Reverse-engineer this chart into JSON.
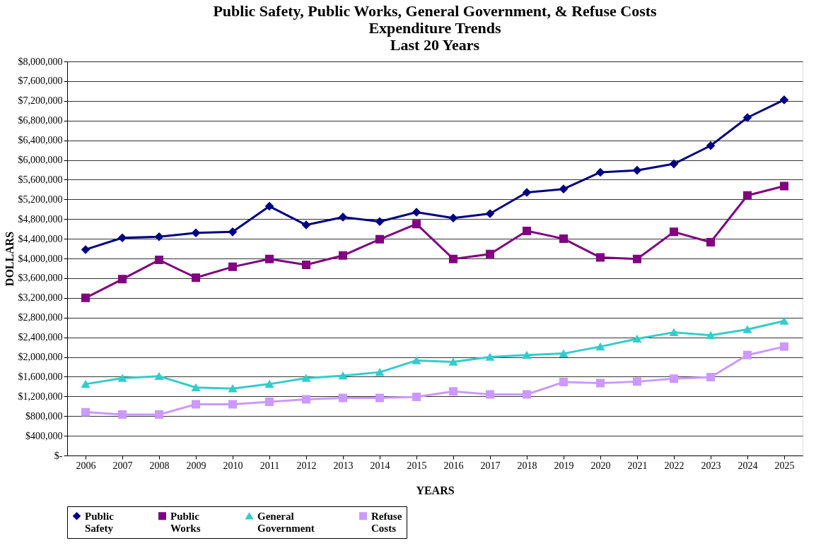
{
  "chart_data": {
    "type": "line",
    "title": "Public Safety, Public Works, General Government, & Refuse Costs\nExpenditure Trends\nLast 20 Years",
    "xlabel": "YEARS",
    "ylabel": "DOLLARS",
    "categories": [
      "2006",
      "2007",
      "2008",
      "2009",
      "2010",
      "2011",
      "2012",
      "2013",
      "2014",
      "2015",
      "2016",
      "2017",
      "2018",
      "2019",
      "2020",
      "2021",
      "2022",
      "2023",
      "2024",
      "2025"
    ],
    "series": [
      {
        "name": "Public Safety",
        "color": "#000080",
        "marker": "diamond",
        "values": [
          4180000,
          4420000,
          4440000,
          4520000,
          4540000,
          5060000,
          4680000,
          4840000,
          4750000,
          4940000,
          4820000,
          4910000,
          5340000,
          5410000,
          5750000,
          5790000,
          5920000,
          6290000,
          6860000,
          7220000
        ]
      },
      {
        "name": "Public Works",
        "color": "#800080",
        "marker": "square",
        "values": [
          3200000,
          3580000,
          3970000,
          3610000,
          3830000,
          3990000,
          3870000,
          4060000,
          4390000,
          4700000,
          3990000,
          4090000,
          4560000,
          4400000,
          4020000,
          3990000,
          4540000,
          4330000,
          5280000,
          5470000
        ]
      },
      {
        "name": "General Government",
        "color": "#33cccc",
        "marker": "triangle",
        "values": [
          1450000,
          1570000,
          1610000,
          1380000,
          1360000,
          1450000,
          1570000,
          1620000,
          1690000,
          1930000,
          1900000,
          2000000,
          2040000,
          2070000,
          2210000,
          2370000,
          2500000,
          2440000,
          2560000,
          2730000
        ]
      },
      {
        "name": "Refuse Costs",
        "color": "#cc99ff",
        "marker": "square",
        "values": [
          880000,
          830000,
          830000,
          1040000,
          1040000,
          1090000,
          1140000,
          1170000,
          1170000,
          1190000,
          1300000,
          1240000,
          1240000,
          1490000,
          1470000,
          1500000,
          1560000,
          1590000,
          2040000,
          2210000
        ]
      }
    ],
    "ylim": [
      0,
      8000000
    ],
    "yticks": [
      {
        "value": 0,
        "label": "$-"
      },
      {
        "value": 400000,
        "label": "$400,000"
      },
      {
        "value": 800000,
        "label": "$800,000"
      },
      {
        "value": 1200000,
        "label": "$1,200,000"
      },
      {
        "value": 1600000,
        "label": "$1,600,000"
      },
      {
        "value": 2000000,
        "label": "$2,000,000"
      },
      {
        "value": 2400000,
        "label": "$2,400,000"
      },
      {
        "value": 2800000,
        "label": "$2,800,000"
      },
      {
        "value": 3200000,
        "label": "$3,200,000"
      },
      {
        "value": 3600000,
        "label": "$3,600,000"
      },
      {
        "value": 4000000,
        "label": "$4,000,000"
      },
      {
        "value": 4400000,
        "label": "$4,400,000"
      },
      {
        "value": 4800000,
        "label": "$4,800,000"
      },
      {
        "value": 5200000,
        "label": "$5,200,000"
      },
      {
        "value": 5600000,
        "label": "$5,600,000"
      },
      {
        "value": 6000000,
        "label": "$6,000,000"
      },
      {
        "value": 6400000,
        "label": "$6,400,000"
      },
      {
        "value": 6800000,
        "label": "$6,800,000"
      },
      {
        "value": 7200000,
        "label": "$7,200,000"
      },
      {
        "value": 7600000,
        "label": "$7,600,000"
      },
      {
        "value": 8000000,
        "label": "$8,000,000"
      }
    ],
    "grid": "y",
    "legend": "bottom"
  }
}
